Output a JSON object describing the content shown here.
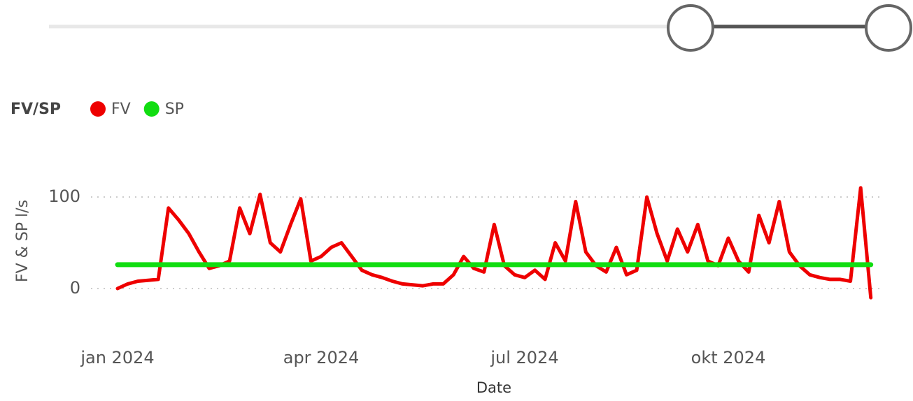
{
  "chart_data": {
    "type": "line",
    "legend_title": "FV/SP",
    "ylabel": "FV & SP l/s",
    "xlabel": "Date",
    "categories": [
      "jan 2024",
      null,
      null,
      null,
      null,
      null,
      null,
      null,
      null,
      null,
      null,
      null,
      null,
      null,
      null,
      null,
      null,
      null,
      null,
      null,
      "apr 2024",
      null,
      null,
      null,
      null,
      null,
      null,
      null,
      null,
      null,
      null,
      null,
      null,
      null,
      null,
      null,
      null,
      null,
      null,
      null,
      "jul 2024",
      null,
      null,
      null,
      null,
      null,
      null,
      null,
      null,
      null,
      null,
      null,
      null,
      null,
      null,
      null,
      null,
      null,
      null,
      null,
      "okt 2024",
      null,
      null,
      null,
      null,
      null,
      null,
      null,
      null,
      null,
      null,
      null,
      null,
      null,
      null
    ],
    "series": [
      {
        "name": "FV",
        "color": "#ee0000",
        "values": [
          0,
          5,
          8,
          9,
          10,
          88,
          75,
          60,
          40,
          22,
          25,
          30,
          88,
          60,
          103,
          50,
          40,
          70,
          98,
          30,
          35,
          45,
          50,
          35,
          20,
          15,
          12,
          8,
          5,
          4,
          3,
          5,
          5,
          15,
          35,
          22,
          18,
          70,
          25,
          15,
          12,
          20,
          10,
          50,
          30,
          95,
          40,
          25,
          18,
          45,
          15,
          20,
          100,
          60,
          30,
          65,
          40,
          70,
          30,
          25,
          55,
          30,
          18,
          80,
          50,
          95,
          40,
          25,
          15,
          12,
          10,
          10,
          8,
          110,
          -10
        ]
      },
      {
        "name": "SP",
        "color": "#11dd11",
        "values": [
          26,
          26,
          26,
          26,
          26,
          26,
          26,
          26,
          26,
          26,
          26,
          26,
          26,
          26,
          26,
          26,
          26,
          26,
          26,
          26,
          26,
          26,
          26,
          26,
          26,
          26,
          26,
          26,
          26,
          26,
          26,
          26,
          26,
          26,
          26,
          26,
          26,
          26,
          26,
          26,
          26,
          26,
          26,
          26,
          26,
          26,
          26,
          26,
          26,
          26,
          26,
          26,
          26,
          26,
          26,
          26,
          26,
          26,
          26,
          26,
          26,
          26,
          26,
          26,
          26,
          26,
          26,
          26,
          26,
          26,
          26,
          26,
          26,
          26,
          26
        ]
      }
    ],
    "ylim": [
      -20,
      130
    ],
    "yticks": [
      0,
      100
    ],
    "grid": true
  }
}
